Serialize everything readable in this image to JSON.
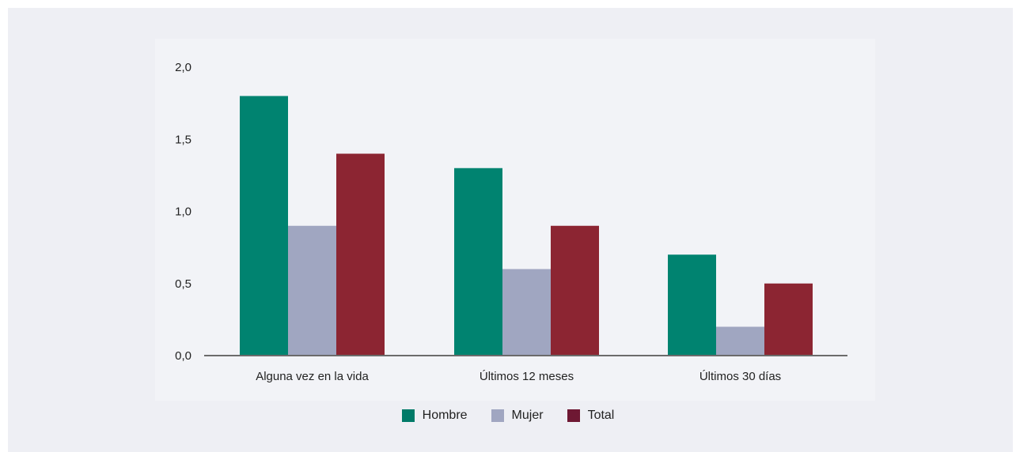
{
  "chart_data": {
    "type": "bar",
    "categories": [
      "Alguna vez en la vida",
      "Últimos 12 meses",
      "Últimos 30 días"
    ],
    "series": [
      {
        "name": "Hombre",
        "values": [
          1.8,
          1.3,
          0.7
        ],
        "color": "#008370"
      },
      {
        "name": "Mujer",
        "values": [
          0.9,
          0.6,
          0.2
        ],
        "color": "#a0a6c1"
      },
      {
        "name": "Total",
        "values": [
          1.4,
          0.9,
          0.5
        ],
        "color": "#8c2532"
      }
    ],
    "ylim": [
      0,
      2.0
    ],
    "yticks": [
      "0,0",
      "0,5",
      "1,0",
      "1,5",
      "2,0"
    ],
    "xlabel": "",
    "ylabel": "",
    "grid": false,
    "legend_position": "bottom-center"
  },
  "legend_colors": {
    "Hombre": "#007a68",
    "Mujer": "#a0a6c1",
    "Total": "#6e1833"
  }
}
